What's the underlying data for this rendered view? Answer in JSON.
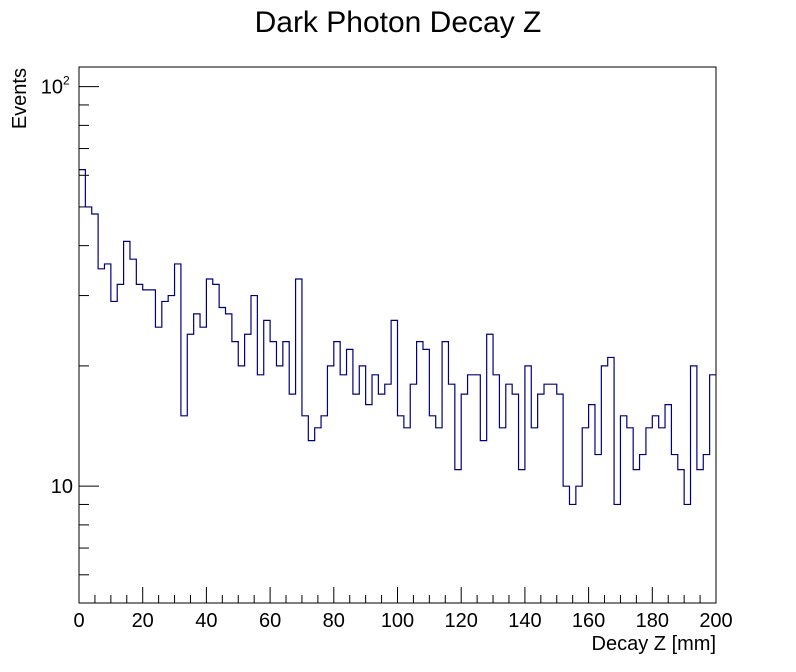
{
  "chart_data": {
    "type": "histogram",
    "title": "Dark Photon Decay Z",
    "xlabel": "Decay Z [mm]",
    "ylabel": "Events",
    "xlim": [
      0,
      200
    ],
    "ylim": [
      5.1,
      112
    ],
    "yscale": "log",
    "bin_width": 2,
    "line_color": "#00007f",
    "x_ticks": [
      0,
      20,
      40,
      60,
      80,
      100,
      120,
      140,
      160,
      180,
      200
    ],
    "y_tick_labels": [
      {
        "value": 10,
        "base": "10",
        "exp": ""
      },
      {
        "value": 100,
        "base": "10",
        "exp": "2"
      }
    ],
    "bin_edges_start": 0,
    "values": [
      62,
      50,
      48,
      35,
      36,
      29,
      32,
      41,
      37,
      32,
      31,
      31,
      25,
      29,
      30,
      36,
      15,
      24,
      27,
      25,
      33,
      32,
      28,
      27,
      23,
      20,
      24,
      30,
      19,
      26,
      23,
      20,
      23,
      17,
      33,
      15,
      13,
      14,
      15,
      20,
      23,
      19,
      22,
      17,
      20,
      16,
      19,
      17,
      18,
      26,
      15,
      14,
      18,
      23,
      22,
      15,
      14,
      23,
      18,
      11,
      17,
      19,
      19,
      13,
      24,
      19,
      14,
      18,
      17,
      11,
      20,
      14,
      17,
      18,
      18,
      17,
      10,
      9,
      10,
      14,
      16,
      12,
      20,
      21,
      9,
      15,
      14,
      11,
      12,
      14,
      15,
      14,
      16,
      12,
      11,
      9,
      20,
      11,
      12,
      19
    ]
  }
}
